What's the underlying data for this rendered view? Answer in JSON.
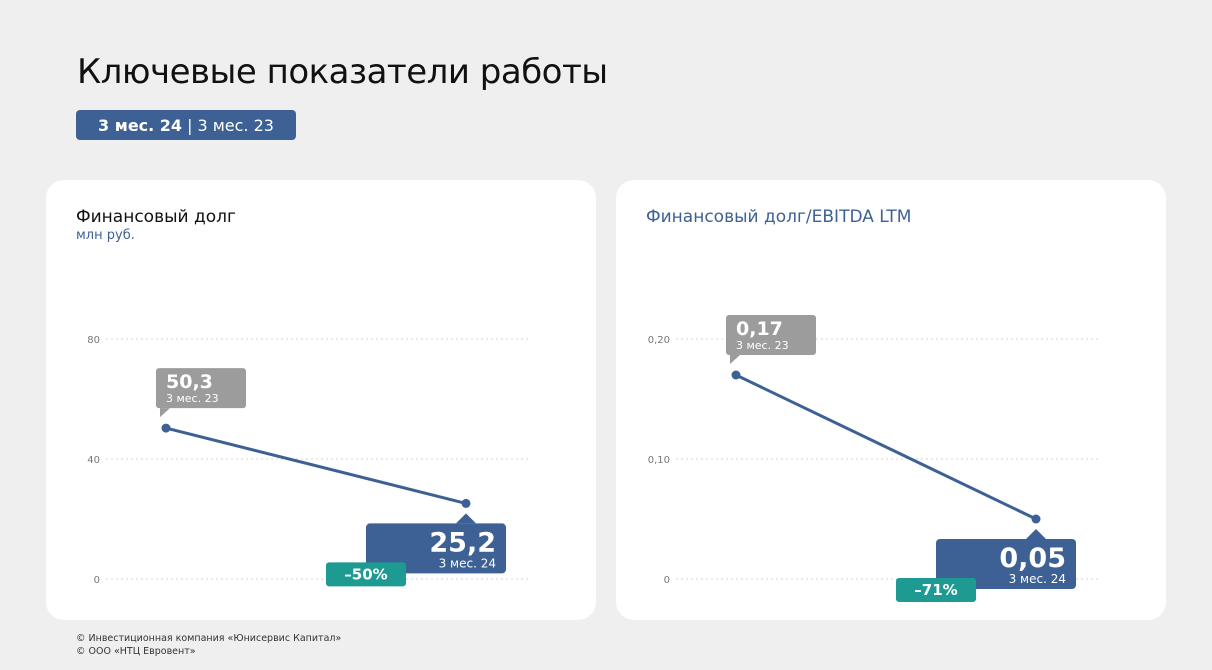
{
  "page": {
    "title": "Ключевые показатели работы",
    "period_current": "3 мес. 24",
    "period_separator": "|",
    "period_previous": "3 мес. 23"
  },
  "colors": {
    "accent": "#3d6194",
    "grey_label": "#9c9c9c",
    "change_badge": "#1d9a91",
    "background": "#efefef"
  },
  "chart_data": [
    {
      "type": "line",
      "title": "Финансовый долг",
      "subtitle": "млн руб.",
      "x": [
        "3 мес. 23",
        "3 мес. 24"
      ],
      "series": [
        {
          "values": [
            50.3,
            25.2
          ]
        }
      ],
      "ylim": [
        0,
        80
      ],
      "yticks": [
        0,
        40,
        80
      ],
      "ytick_labels": [
        "0",
        "40",
        "80"
      ],
      "grid": true,
      "point_labels": [
        {
          "value": "50,3",
          "period": "3 мес. 23",
          "style": "grey"
        },
        {
          "value": "25,2",
          "period": "3 мес. 24",
          "style": "accent"
        }
      ],
      "change_label": "–50%"
    },
    {
      "type": "line",
      "title": "Финансовый долг/EBITDA LTM",
      "subtitle": "",
      "x": [
        "3 мес. 23",
        "3 мес. 24"
      ],
      "series": [
        {
          "values": [
            0.17,
            0.05
          ]
        }
      ],
      "ylim": [
        0,
        0.2
      ],
      "yticks": [
        0,
        0.1,
        0.2
      ],
      "ytick_labels": [
        "0",
        "0,10",
        "0,20"
      ],
      "grid": true,
      "point_labels": [
        {
          "value": "0,17",
          "period": "3 мес. 23",
          "style": "grey"
        },
        {
          "value": "0,05",
          "period": "3 мес. 24",
          "style": "accent"
        }
      ],
      "change_label": "–71%"
    }
  ],
  "footer": {
    "line1": "© Инвестиционная компания «Юнисервис Капитал»",
    "line2": "© ООО «НТЦ Евровент»"
  }
}
